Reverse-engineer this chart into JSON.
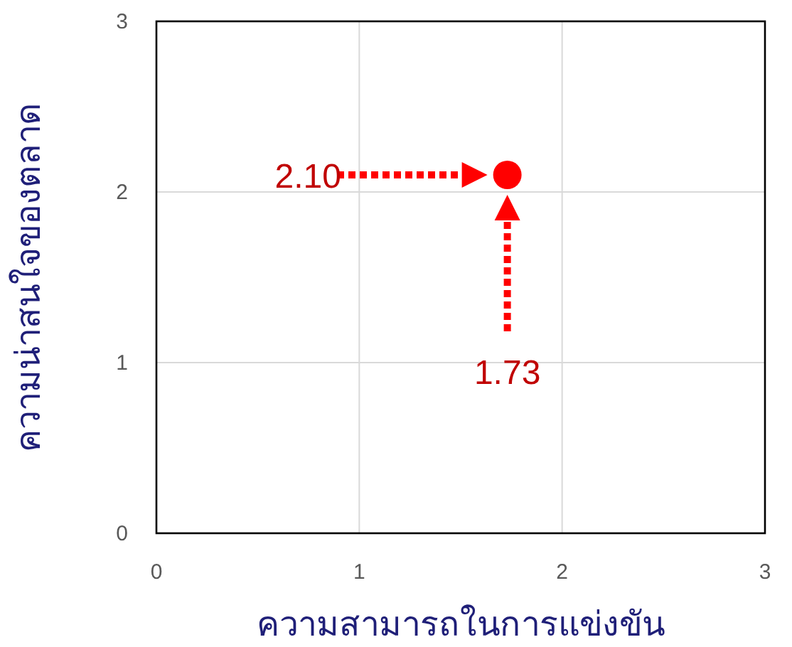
{
  "chart_data": {
    "type": "scatter",
    "xlabel": "ความสามารถในการแข่งขัน",
    "ylabel": "ความน่าสนใจของตลาด",
    "x": [
      1.73
    ],
    "values": [
      2.1
    ],
    "color": "#ff0000",
    "marker": "circle",
    "xlim": [
      0,
      3
    ],
    "ylim": [
      0,
      3
    ],
    "xticks": [
      0,
      1,
      2,
      3
    ],
    "yticks": [
      0,
      1,
      2,
      3
    ],
    "grid": true,
    "annotations": [
      "2.10",
      "1.73"
    ]
  }
}
